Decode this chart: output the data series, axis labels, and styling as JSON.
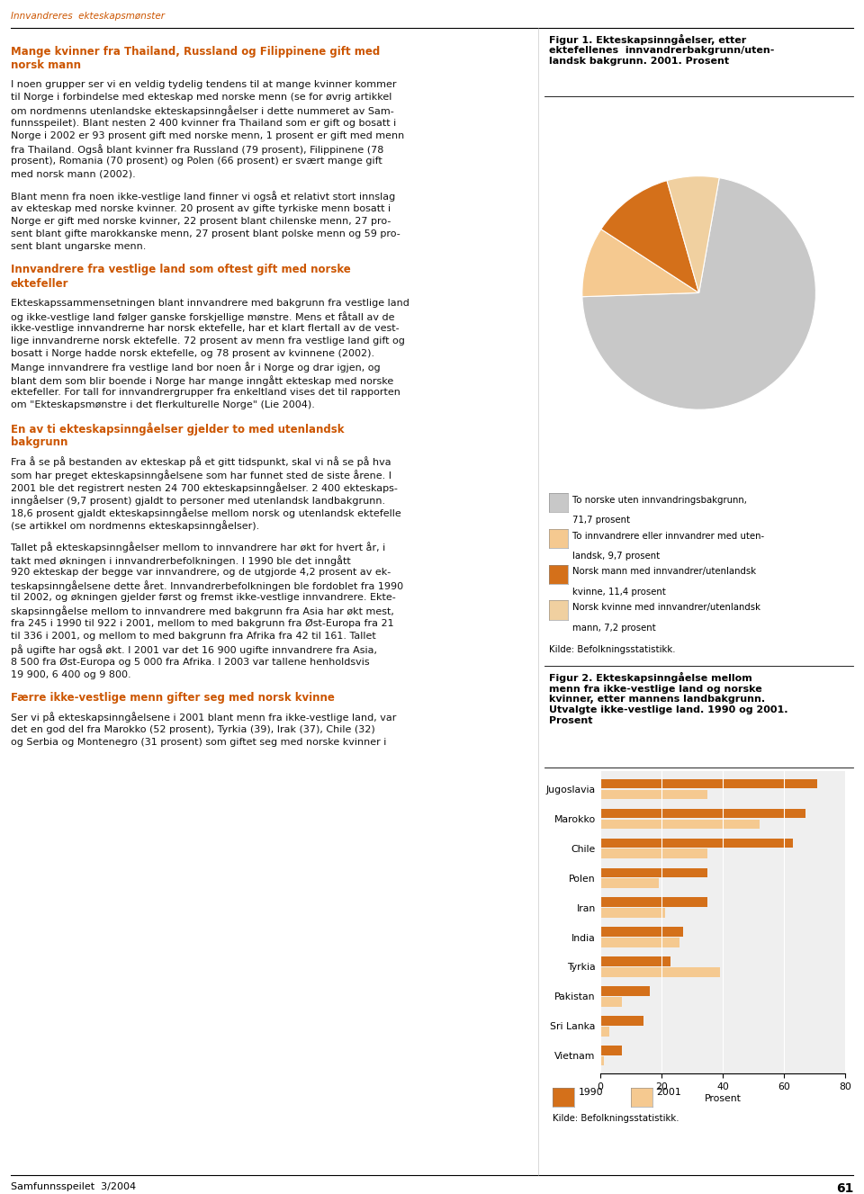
{
  "page_title": "Innvandreres  ekteskapsmønster",
  "page_number": "61",
  "journal": "Samfunnsspeilet  3/2004",
  "text_col_wrap": 62,
  "left_text_blocks": [
    {
      "heading": "Mange kvinner fra Thailand, Russland og Filippinene gift med\nnorsk mann",
      "body": "I noen grupper ser vi en veldig tydelig tendens til at mange kvinner kommer\ntil Norge i forbindelse med ekteskap med norske menn (se for øvrig artikkel\nom nordmenns utenlandske ekteskapsinngåelser i dette nummeret av Sam-\nfunnsspeilet). Blant nesten 2 400 kvinner fra Thailand som er gift og bosatt i\nNorge i 2002 er 93 prosent gift med norske menn, 1 prosent er gift med menn\nfra Thailand. Også blant kvinner fra Russland (79 prosent), Filippinene (78\nprosent), Romania (70 prosent) og Polen (66 prosent) er svært mange gift\nmed norsk mann (2002)."
    },
    {
      "heading": "",
      "body": "Blant menn fra noen ikke-vestlige land finner vi også et relativt stort innslag\nav ekteskap med norske kvinner. 20 prosent av gifte tyrkiske menn bosatt i\nNorge er gift med norske kvinner, 22 prosent blant chilenske menn, 27 pro-\nsent blant gifte marokkanske menn, 27 prosent blant polske menn og 59 pro-\nsent blant ungarske menn."
    },
    {
      "heading": "Innvandrere fra vestlige land som oftest gift med norske\nektefeller",
      "body": "Ekteskapssammensetningen blant innvandrere med bakgrunn fra vestlige land\nog ikke-vestlige land følger ganske forskjellige mønstre. Mens et fåtall av de\nikke-vestlige innvandrerne har norsk ektefelle, har et klart flertall av de vest-\nlige innvandrerne norsk ektefelle. 72 prosent av menn fra vestlige land gift og\nbosatt i Norge hadde norsk ektefelle, og 78 prosent av kvinnene (2002).\nMange innvandrere fra vestlige land bor noen år i Norge og drar igjen, og\nblant dem som blir boende i Norge har mange inngått ekteskap med norske\nektefeller. For tall for innvandrergrupper fra enkeltland vises det til rapporten\nom \"Ekteskapsmønstre i det flerkulturelle Norge\" (Lie 2004)."
    },
    {
      "heading": "En av ti ekteskapsinngåelser gjelder to med utenlandsk\nbakgrunn",
      "body": "Fra å se på bestanden av ekteskap på et gitt tidspunkt, skal vi nå se på hva\nsom har preget ekteskapsinngåelsene som har funnet sted de siste årene. I\n2001 ble det registrert nesten 24 700 ekteskapsinngåelser. 2 400 ekteskaps-\ninngåelser (9,7 prosent) gjaldt to personer med utenlandsk landbakgrunn.\n18,6 prosent gjaldt ekteskapsinngåelse mellom norsk og utenlandsk ektefelle\n(se artikkel om nordmenns ekteskapsinngåelser)."
    },
    {
      "heading": "",
      "body": "Tallet på ekteskapsinngåelser mellom to innvandrere har økt for hvert år, i\ntakt med økningen i innvandrerbefolkningen. I 1990 ble det inngått\n920 ekteskap der begge var innvandrere, og de utgjorde 4,2 prosent av ek-\nteskapsinngåelsene dette året. Innvandrerbefolkningen ble fordoblet fra 1990\ntil 2002, og økningen gjelder først og fremst ikke-vestlige innvandrere. Ekte-\nskapsinngåelse mellom to innvandrere med bakgrunn fra Asia har økt mest,\nfra 245 i 1990 til 922 i 2001, mellom to med bakgrunn fra Øst-Europa fra 21\ntil 336 i 2001, og mellom to med bakgrunn fra Afrika fra 42 til 161. Tallet\npå ugifte har også økt. I 2001 var det 16 900 ugifte innvandrere fra Asia,\n8 500 fra Øst-Europa og 5 000 fra Afrika. I 2003 var tallene henholdsvis\n19 900, 6 400 og 9 800."
    },
    {
      "heading": "Færre ikke-vestlige menn gifter seg med norsk kvinne",
      "body": "Ser vi på ekteskapsinngåelsene i 2001 blant menn fra ikke-vestlige land, var\ndet en god del fra Marokko (52 prosent), Tyrkia (39), Irak (37), Chile (32)\nog Serbia og Montenegro (31 prosent) som giftet seg med norske kvinner i"
    }
  ],
  "fig1": {
    "title": "Figur 1. Ekteskapsinngåelser, etter\nektefellenes  innvandrerbakgrunn/uten-\nlandsk bakgrunn. 2001. Prosent",
    "slices": [
      71.7,
      9.7,
      11.4,
      7.2
    ],
    "colors": [
      "#c8c8c8",
      "#f5c990",
      "#d4701a",
      "#f0d0a0"
    ],
    "startangle": 80,
    "legend_labels": [
      "To norske uten innvandringsbakgrunn,\n71,7 prosent",
      "To innvandrere eller innvandrer med uten-\nlandsk, 9,7 prosent",
      "Norsk mann med innvandrer/utenlandsk\nkvinne, 11,4 prosent",
      "Norsk kvinne med innvandrer/utenlandsk\nmann, 7,2 prosent"
    ],
    "source": "Kilde: Befolkningsstatistikk."
  },
  "fig2": {
    "title": "Figur 2. Ekteskapsinngåelse mellom\nmenn fra ikke-vestlige land og norske\nkvinner, etter mannens landbakgrunn.\nUtvalgte ikke-vestlige land. 1990 og 2001.\nProsent",
    "categories": [
      "Jugoslavia",
      "Marokko",
      "Chile",
      "Polen",
      "Iran",
      "India",
      "Tyrkia",
      "Pakistan",
      "Sri Lanka",
      "Vietnam"
    ],
    "values_1990": [
      71,
      67,
      63,
      35,
      35,
      27,
      23,
      16,
      14,
      7
    ],
    "values_2001": [
      35,
      52,
      35,
      19,
      21,
      26,
      39,
      7,
      3,
      1
    ],
    "color_1990": "#d4701a",
    "color_2001": "#f5c990",
    "xlabel": "Prosent",
    "xlim": [
      0,
      80
    ],
    "xticks": [
      0,
      20,
      40,
      60,
      80
    ],
    "legend_1990": "1990",
    "legend_2001": "2001",
    "source": "Kilde: Befolkningsstatistikk."
  },
  "colors": {
    "heading_orange": "#cc5500",
    "page_title_orange": "#cc5500",
    "body_text": "#111111",
    "background": "#ffffff"
  },
  "body_fontsize": 8.0,
  "heading_fontsize": 8.5
}
